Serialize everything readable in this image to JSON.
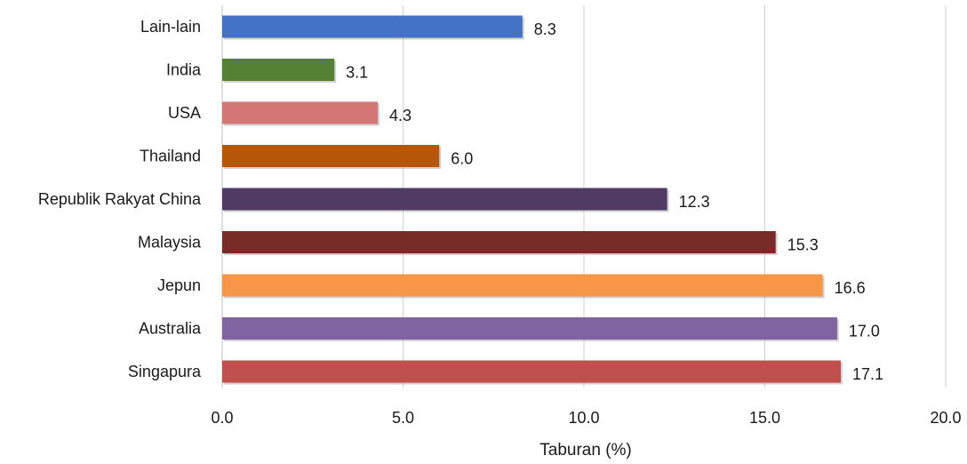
{
  "chart_data": {
    "type": "bar",
    "orientation": "horizontal",
    "categories": [
      "Lain-lain",
      "India",
      "USA",
      "Thailand",
      "Republik Rakyat China",
      "Malaysia",
      "Jepun",
      "Australia",
      "Singapura"
    ],
    "values": [
      8.3,
      3.1,
      4.3,
      6.0,
      12.3,
      15.3,
      16.6,
      17.0,
      17.1
    ],
    "value_labels": [
      "8.3",
      "3.1",
      "4.3",
      "6.0",
      "12.3",
      "15.3",
      "16.6",
      "17.0",
      "17.1"
    ],
    "colors": [
      "#4472c4",
      "#548235",
      "#d47676",
      "#b65708",
      "#4f3b64",
      "#772c28",
      "#f79646",
      "#8064a2",
      "#c0504d"
    ],
    "xlabel": "Taburan (%)",
    "ylabel": "",
    "xlim": [
      0,
      20
    ],
    "xticks": [
      0,
      5,
      10,
      15,
      20
    ],
    "xtick_labels": [
      "0.0",
      "5.0",
      "10.0",
      "15.0",
      "20.0"
    ],
    "grid": "vertical",
    "legend": "none"
  }
}
